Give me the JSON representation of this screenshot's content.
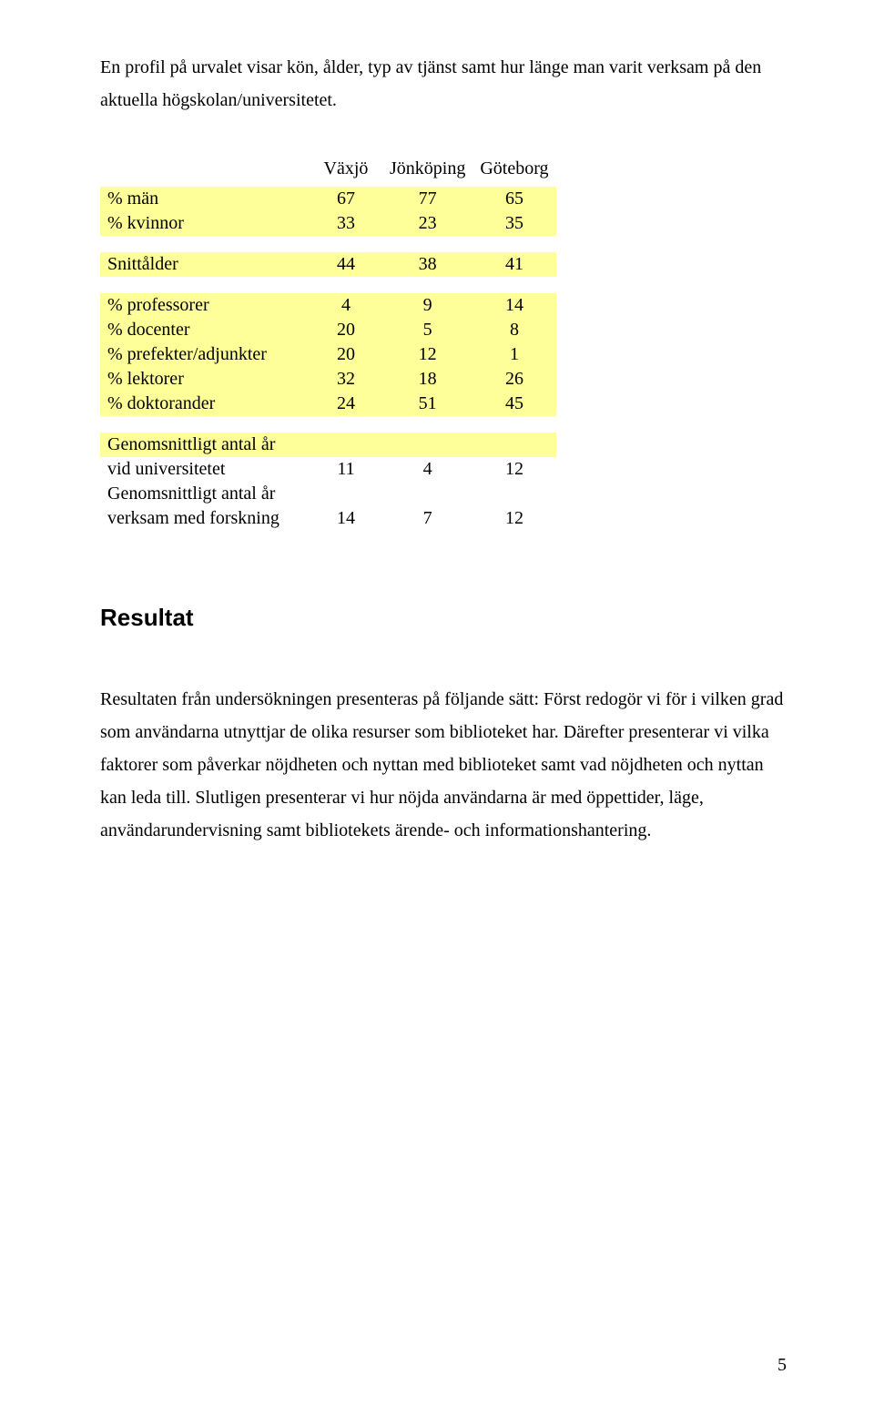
{
  "intro_para": "En profil på urvalet visar kön, ålder, typ av tjänst samt hur länge man varit verksam på den aktuella högskolan/universitetet.",
  "table": {
    "columns": [
      "Växjö",
      "Jönköping",
      "Göteborg"
    ],
    "highlight_color": "#ffff99",
    "text_color": "#000000",
    "groups": [
      {
        "rows": [
          {
            "label": "% män",
            "values": [
              67,
              77,
              65
            ],
            "highlight": true
          },
          {
            "label": "% kvinnor",
            "values": [
              33,
              23,
              35
            ],
            "highlight": true
          }
        ]
      },
      {
        "rows": [
          {
            "label": "Snittålder",
            "values": [
              44,
              38,
              41
            ],
            "highlight": true
          }
        ]
      },
      {
        "rows": [
          {
            "label": "% professorer",
            "values": [
              4,
              9,
              14
            ],
            "highlight": true
          },
          {
            "label": "% docenter",
            "values": [
              20,
              5,
              8
            ],
            "highlight": true
          },
          {
            "label": "% prefekter/adjunkter",
            "values": [
              20,
              12,
              1
            ],
            "highlight": true
          },
          {
            "label": "% lektorer",
            "values": [
              32,
              18,
              26
            ],
            "highlight": true
          },
          {
            "label": "% doktorander",
            "values": [
              24,
              51,
              45
            ],
            "highlight": true
          }
        ]
      },
      {
        "rows": [
          {
            "label": "Genomsnittligt antal år",
            "values": [
              "",
              "",
              ""
            ],
            "highlight": true,
            "label_only": true
          },
          {
            "label": "vid universitetet",
            "values": [
              11,
              4,
              12
            ],
            "highlight": false
          },
          {
            "label": "Genomsnittligt antal år",
            "values": [
              "",
              "",
              ""
            ],
            "highlight": false,
            "label_only": true
          },
          {
            "label": "verksam med forskning",
            "values": [
              14,
              7,
              12
            ],
            "highlight": false
          }
        ]
      }
    ]
  },
  "heading": "Resultat",
  "body_para": "Resultaten från undersökningen presenteras på följande sätt: Först redogör vi för i vilken grad som användarna utnyttjar de olika resurser som biblioteket har. Därefter presenterar vi vilka faktorer som påverkar nöjdheten och nyttan med biblioteket samt vad nöjdheten och nyttan kan leda till. Slutligen presenterar vi hur nöjda användarna är med öppettider, läge, användarundervisning samt bibliotekets ärende- och informationshantering.",
  "page_number": "5"
}
